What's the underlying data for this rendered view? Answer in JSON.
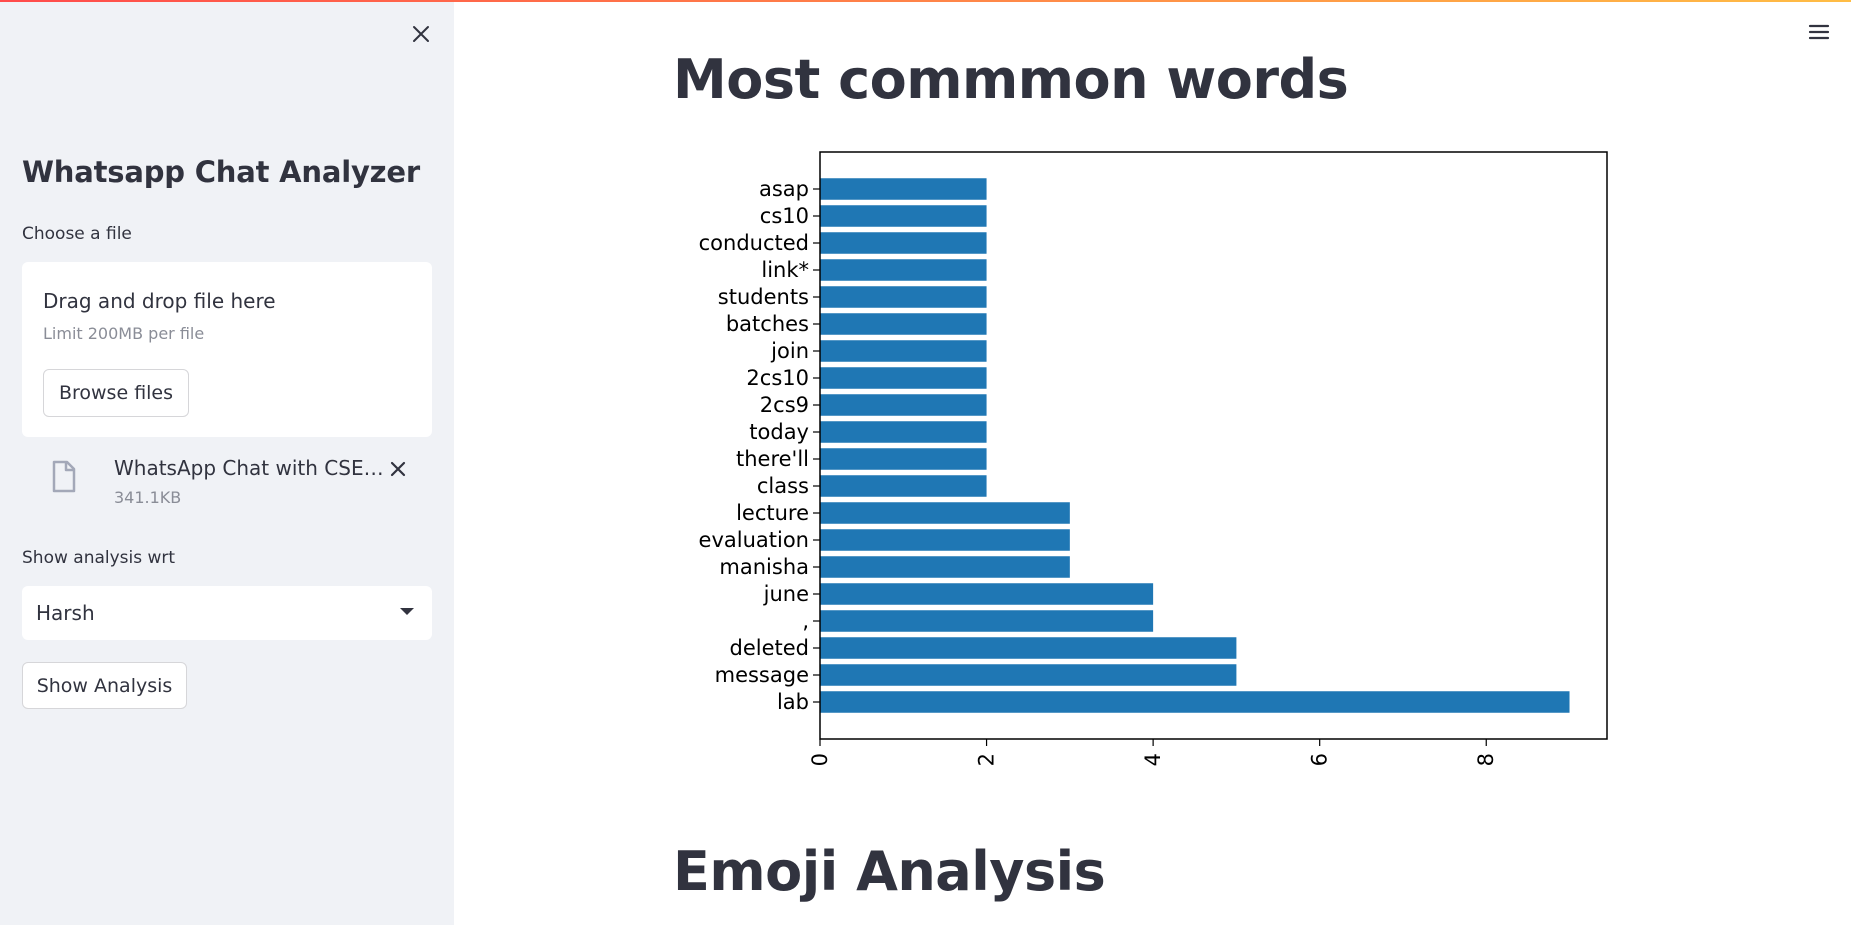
{
  "sidebar": {
    "title": "Whatsapp Chat Analyzer",
    "file_label": "Choose a file",
    "dropzone": {
      "title": "Drag and drop file here",
      "limit": "Limit 200MB per file",
      "browse_label": "Browse files"
    },
    "file": {
      "name": "WhatsApp Chat with CSE 9-...",
      "size": "341.1KB"
    },
    "analysis_label": "Show analysis wrt",
    "select_value": "Harsh",
    "show_button": "Show Analysis"
  },
  "main": {
    "heading_words": "Most commmon words",
    "heading_emoji": "Emoji Analysis"
  },
  "chart_data": {
    "type": "bar",
    "orientation": "horizontal",
    "categories": [
      "lab",
      "message",
      "deleted",
      ",",
      "june",
      "manisha",
      "evaluation",
      "lecture",
      "class",
      "there'll",
      "today",
      "2cs9",
      "2cs10",
      "join",
      "batches",
      "students",
      "link*",
      "conducted",
      "cs10",
      "asap"
    ],
    "values": [
      9,
      5,
      5,
      4,
      4,
      3,
      3,
      3,
      2,
      2,
      2,
      2,
      2,
      2,
      2,
      2,
      2,
      2,
      2,
      2
    ],
    "xlim": [
      0,
      9.45
    ],
    "x_ticks": [
      "0",
      "2",
      "4",
      "6",
      "8"
    ],
    "bar_color": "#1f77b4",
    "grid": false
  }
}
